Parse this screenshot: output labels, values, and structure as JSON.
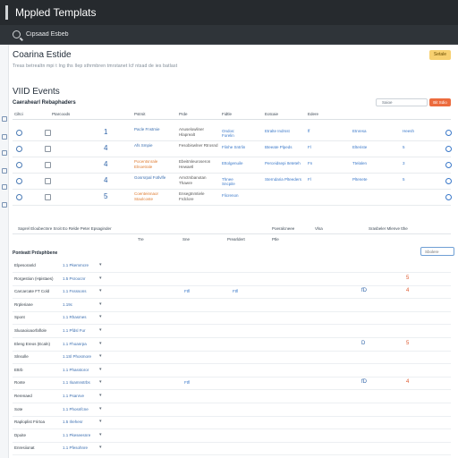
{
  "app": {
    "title": "Mppled Templats"
  },
  "search": {
    "value": "Cipsaad Esbeb"
  },
  "page": {
    "title": "Coarina Estide",
    "subtitle": "Treas betrealtn mpi t Ing ths Ilep sthrmbren tmrstanet lcf ntsad de ies batlast",
    "action_label": "Setale"
  },
  "section": {
    "title": "VIID Events",
    "subtitle": "Caerahearl Rebaphaders",
    "toolbar": {
      "filter_label": "Saioe",
      "button_label": "Bit Sdio"
    }
  },
  "table1": {
    "headers": [
      "Ciltci",
      "Ptarcoods",
      "Pstrsit",
      "Prde",
      "Fidtle",
      "Eotcaie",
      "Edere"
    ],
    "rows": [
      {
        "num": "1",
        "status": "Pacle Fnstmie",
        "detail": "Anuselowliner Hlaprealt",
        "tag": "Ondos: Forelin",
        "info": "Etralte Indrsst",
        "code": "ff",
        "ref": "Etnresa",
        "extra": "Heesh",
        "warn": false
      },
      {
        "num": "4",
        "status": "Afs Smpie",
        "detail": "Fesobiswlner Rtrosnd",
        "tag": "Flinhe Sntrlin",
        "info": "Bteeate Plpeds",
        "code": "Fl",
        "ref": "Elteriste",
        "extra": "5",
        "warn": false
      },
      {
        "num": "4",
        "status": "Pocentsnrale Elnoetrale",
        "detail": "Ebeitmleuroseron Hewaetl",
        "tag": "Ettolgenuile",
        "info": "Perceidsepi Iteteteh",
        "code": "Fn",
        "ref": "Ttelalen",
        "extra": "3",
        "warn": true
      },
      {
        "num": "4",
        "status": "Gosrsrpal Fotlvlfe",
        "detail": "Arnctrsbanotan Thawre",
        "tag": "Thnee Sncpile",
        "info": "Sterndaria Plteeders",
        "code": "Fl",
        "ref": "Pltenete",
        "extra": "5",
        "warn": false
      },
      {
        "num": "5",
        "status": "Coenteinnaor Staolcoste",
        "detail": "Ensegtnmtiele Frdclore",
        "tag": "Flicrenon",
        "info": "",
        "code": "",
        "ref": "",
        "extra": "",
        "warn": true
      }
    ],
    "summary_row": [
      "Saprel Eloubectnre Sroit Eo Relde Peter Epsaginder",
      "Poeralcneee",
      "Vlsa",
      "Srasbeler Mlenve tthe"
    ],
    "subheader_row": [
      "Tre",
      "Sne",
      "Prearldert",
      "Ptle"
    ]
  },
  "table2": {
    "title": "Ponteatt Prdsphbene",
    "filter_placeholder": "Sbolere",
    "rows": [
      {
        "label": "Elpesoranld",
        "val": "1.1 Pkemmcre",
        "m1": "",
        "m2": "",
        "m3": "",
        "m4": "",
        "m5": "",
        "m6": ""
      },
      {
        "label": "Rorgestion (Hpistaes)",
        "val": "1.5 Psroocnr",
        "m1": "",
        "m2": "",
        "m3": "",
        "m4": "",
        "m5": "",
        "m6": "5"
      },
      {
        "label": "Carcarcate FT Cold",
        "val": "1.1 Fssssons",
        "m1": "",
        "m2": "Ftfl",
        "m3": "Ftfl",
        "m4": "",
        "m5": "fD",
        "m6": "4"
      },
      {
        "label": "Rrpleriane",
        "val": "1.19c",
        "m1": "",
        "m2": "",
        "m3": "",
        "m4": "",
        "m5": "",
        "m6": ""
      },
      {
        "label": "Spont",
        "val": "1.1 Rhasmes",
        "m1": "",
        "m2": "",
        "m3": "",
        "m4": "",
        "m5": "",
        "m6": ""
      },
      {
        "label": "Sluoaoioaorfaflole",
        "val": "1.1 Pfdsl Fur",
        "m1": "",
        "m2": "",
        "m3": "",
        "m4": "",
        "m5": "",
        "m6": ""
      },
      {
        "label": "Eleng Ereos (Ecaln)",
        "val": "1.1 Fhoanrpa",
        "m1": "",
        "m2": "",
        "m3": "",
        "m4": "",
        "m5": "D",
        "m6": "5"
      },
      {
        "label": "Slnsolle",
        "val": "1.1Sl Phosmore",
        "m1": "",
        "m2": "",
        "m3": "",
        "m4": "",
        "m5": "",
        "m6": ""
      },
      {
        "label": "Ettrb",
        "val": "1.1 Phasstoror",
        "m1": "",
        "m2": "",
        "m3": "",
        "m4": "",
        "m5": "",
        "m6": ""
      },
      {
        "label": "Ronte",
        "val": "1.1 Iloamnstrbs",
        "m1": "",
        "m2": "Ftfl",
        "m3": "",
        "m4": "",
        "m5": "fD",
        "m6": "4"
      },
      {
        "label": "Rerenaed",
        "val": "1.1 Psanrve",
        "m1": "",
        "m2": "",
        "m3": "",
        "m4": "",
        "m5": "",
        "m6": ""
      },
      {
        "label": "Sote",
        "val": "1.1 Phosnfcne",
        "m1": "",
        "m2": "",
        "m3": "",
        "m4": "",
        "m5": "",
        "m6": ""
      },
      {
        "label": "Raploplist Frirtoa",
        "val": "1.5 Ilrehesr",
        "m1": "",
        "m2": "",
        "m3": "",
        "m4": "",
        "m5": "",
        "m6": ""
      },
      {
        "label": "Dpoite",
        "val": "1.1 Pkeseesnre",
        "m1": "",
        "m2": "",
        "m3": "",
        "m4": "",
        "m5": "",
        "m6": ""
      },
      {
        "label": "Enresiionat",
        "val": "1.1 Pfesohnre",
        "m1": "",
        "m2": "",
        "m3": "",
        "m4": "",
        "m5": "",
        "m6": ""
      }
    ]
  },
  "colors": {
    "accent": "#ec6b3d",
    "link": "#3a6eb0",
    "topbar": "#262a2e",
    "highlight": "#f7d070"
  }
}
